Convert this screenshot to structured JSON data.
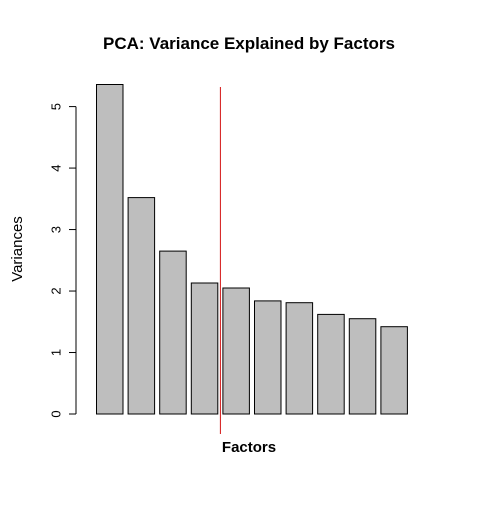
{
  "chart_data": {
    "type": "bar",
    "title": "PCA: Variance Explained by Factors",
    "xlabel": "Factors",
    "ylabel": "Variances",
    "values": [
      5.36,
      3.52,
      2.65,
      2.13,
      2.05,
      1.84,
      1.81,
      1.62,
      1.55,
      1.42
    ],
    "ylim": [
      0,
      5.4
    ],
    "y_ticks": [
      0,
      1,
      2,
      3,
      4,
      5
    ],
    "grid": false,
    "legend": "none",
    "bar_color": "#bebebe",
    "bar_border_color": "#000000",
    "reference_line": {
      "orientation": "vertical",
      "position": "between bars 4 and 5",
      "color": "#d41515"
    }
  }
}
